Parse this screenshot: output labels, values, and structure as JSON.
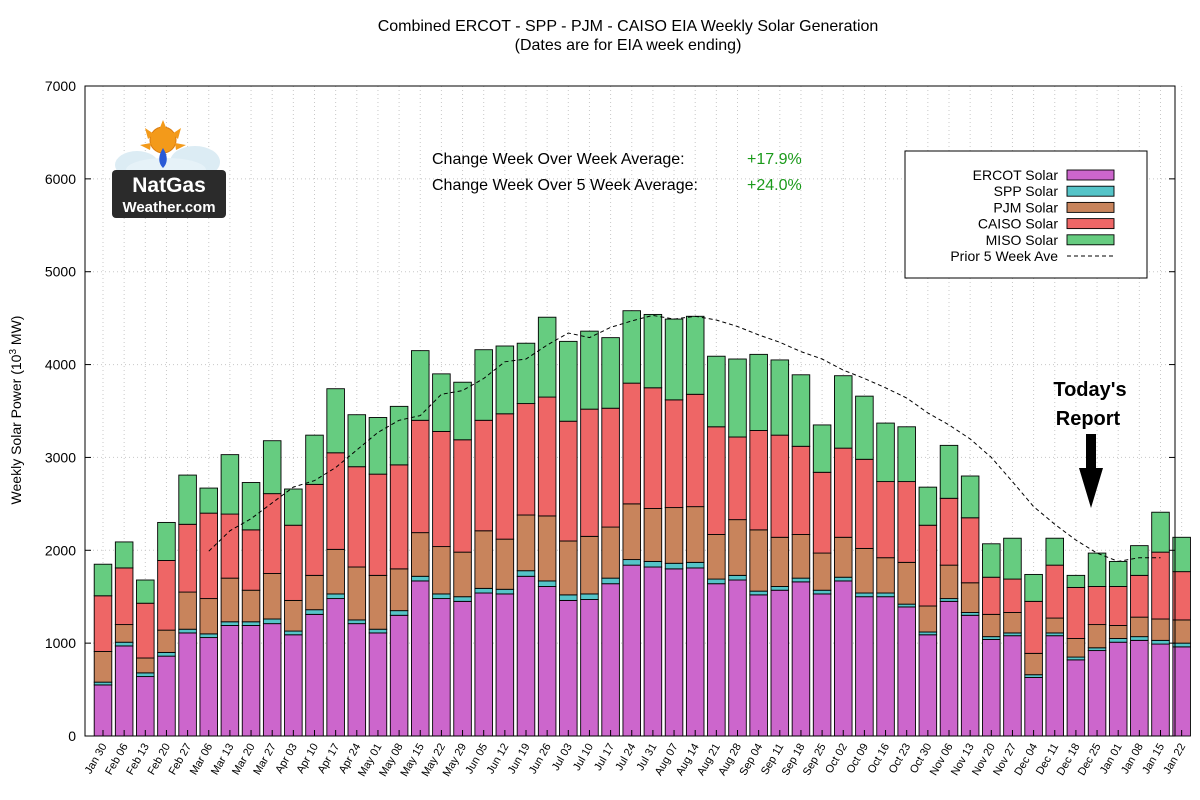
{
  "colors": {
    "ERCOT": "#cc66cc",
    "SPP": "#55c4c8",
    "PJM": "#c8845c",
    "CAISO": "#ee6666",
    "MISO": "#66cc80"
  },
  "logo": {
    "line1": "NatGas",
    "line2": "Weather.com"
  },
  "annotations": {
    "wow_label": "Change Week Over Week Average:",
    "wow_value": "+17.9%",
    "w5_label": "Change Week Over 5 Week Average:",
    "w5_value": "+24.0%",
    "report_line1": "Today's",
    "report_line2": "Report"
  },
  "chart_data": {
    "type": "bar",
    "stacked": true,
    "title": "Combined ERCOT - SPP - PJM - CAISO EIA Weekly Solar Generation",
    "subtitle": "(Dates are for EIA week ending)",
    "ylabel_main": "Weekly Solar Power (10",
    "ylabel_sup": "3",
    "ylabel_end": " MW)",
    "xlabel": "",
    "ylim": [
      0,
      7000
    ],
    "yticks": [
      0,
      1000,
      2000,
      3000,
      4000,
      5000,
      6000,
      7000
    ],
    "grid": true,
    "legend_position": "top-right",
    "categories": [
      "Jan 30",
      "Feb 06",
      "Feb 13",
      "Feb 20",
      "Feb 27",
      "Mar 06",
      "Mar 13",
      "Mar 20",
      "Mar 27",
      "Apr 03",
      "Apr 10",
      "Apr 17",
      "Apr 24",
      "May 01",
      "May 08",
      "May 15",
      "May 22",
      "May 29",
      "Jun 05",
      "Jun 12",
      "Jun 19",
      "Jun 26",
      "Jul 03",
      "Jul 10",
      "Jul 17",
      "Jul 24",
      "Jul 31",
      "Aug 07",
      "Aug 14",
      "Aug 21",
      "Aug 28",
      "Sep 04",
      "Sep 11",
      "Sep 18",
      "Sep 25",
      "Oct 02",
      "Oct 09",
      "Oct 16",
      "Oct 23",
      "Oct 30",
      "Nov 06",
      "Nov 13",
      "Nov 20",
      "Nov 27",
      "Dec 04",
      "Dec 11",
      "Dec 18",
      "Dec 25",
      "Jan 01",
      "Jan 08",
      "Jan 15",
      "Jan 22"
    ],
    "series": [
      {
        "name": "ERCOT Solar",
        "values": [
          550,
          970,
          640,
          860,
          1110,
          1060,
          1190,
          1190,
          1210,
          1090,
          1310,
          1480,
          1210,
          1110,
          1300,
          1670,
          1480,
          1450,
          1540,
          1530,
          1720,
          1610,
          1460,
          1470,
          1640,
          1840,
          1820,
          1800,
          1810,
          1640,
          1680,
          1520,
          1570,
          1660,
          1530,
          1670,
          1500,
          1500,
          1390,
          1090,
          1450,
          1300,
          1040,
          1080,
          630,
          1080,
          820,
          920,
          1010,
          1030,
          990,
          960
        ]
      },
      {
        "name": "SPP Solar",
        "values": [
          30,
          40,
          40,
          40,
          40,
          40,
          40,
          40,
          50,
          40,
          50,
          50,
          40,
          40,
          50,
          50,
          50,
          50,
          50,
          50,
          60,
          60,
          60,
          60,
          60,
          60,
          60,
          60,
          60,
          50,
          50,
          40,
          40,
          40,
          40,
          40,
          40,
          40,
          30,
          30,
          30,
          30,
          30,
          30,
          30,
          30,
          30,
          30,
          40,
          40,
          40,
          40
        ]
      },
      {
        "name": "PJM Solar",
        "values": [
          330,
          190,
          160,
          240,
          400,
          380,
          470,
          340,
          490,
          330,
          370,
          480,
          570,
          580,
          450,
          470,
          510,
          480,
          620,
          540,
          600,
          700,
          580,
          620,
          550,
          600,
          570,
          600,
          600,
          480,
          600,
          660,
          530,
          470,
          400,
          430,
          480,
          380,
          450,
          280,
          360,
          320,
          240,
          220,
          230,
          160,
          200,
          250,
          140,
          210,
          230,
          250
        ]
      },
      {
        "name": "CAISO Solar",
        "values": [
          600,
          610,
          590,
          750,
          730,
          920,
          690,
          650,
          860,
          810,
          980,
          1040,
          1080,
          1090,
          1120,
          1210,
          1240,
          1210,
          1190,
          1350,
          1200,
          1280,
          1290,
          1370,
          1280,
          1300,
          1300,
          1160,
          1210,
          1160,
          890,
          1070,
          1100,
          950,
          870,
          960,
          960,
          820,
          870,
          870,
          720,
          700,
          400,
          360,
          560,
          570,
          550,
          410,
          420,
          450,
          720,
          520
        ]
      },
      {
        "name": "MISO Solar",
        "values": [
          340,
          280,
          250,
          410,
          530,
          270,
          640,
          510,
          570,
          390,
          530,
          690,
          560,
          610,
          630,
          750,
          620,
          620,
          760,
          730,
          650,
          860,
          860,
          840,
          760,
          780,
          790,
          870,
          840,
          760,
          840,
          820,
          810,
          770,
          510,
          780,
          680,
          630,
          590,
          410,
          570,
          450,
          360,
          440,
          290,
          290,
          130,
          360,
          270,
          320,
          430,
          370
        ]
      }
    ],
    "line_series": {
      "name": "Prior 5 Week Ave",
      "values": [
        null,
        null,
        null,
        null,
        null,
        1990,
        2210,
        2340,
        2510,
        2680,
        2750,
        2890,
        3080,
        3270,
        3400,
        3450,
        3680,
        3720,
        3850,
        4030,
        4060,
        4210,
        4340,
        4290,
        4400,
        4470,
        4530,
        4490,
        4520,
        4480,
        4410,
        4320,
        4240,
        4140,
        4060,
        3940,
        3850,
        3750,
        3640,
        3480,
        3350,
        3200,
        3000,
        2740,
        2470,
        2280,
        2110,
        1970,
        1880,
        1920,
        1920,
        null
      ]
    }
  }
}
